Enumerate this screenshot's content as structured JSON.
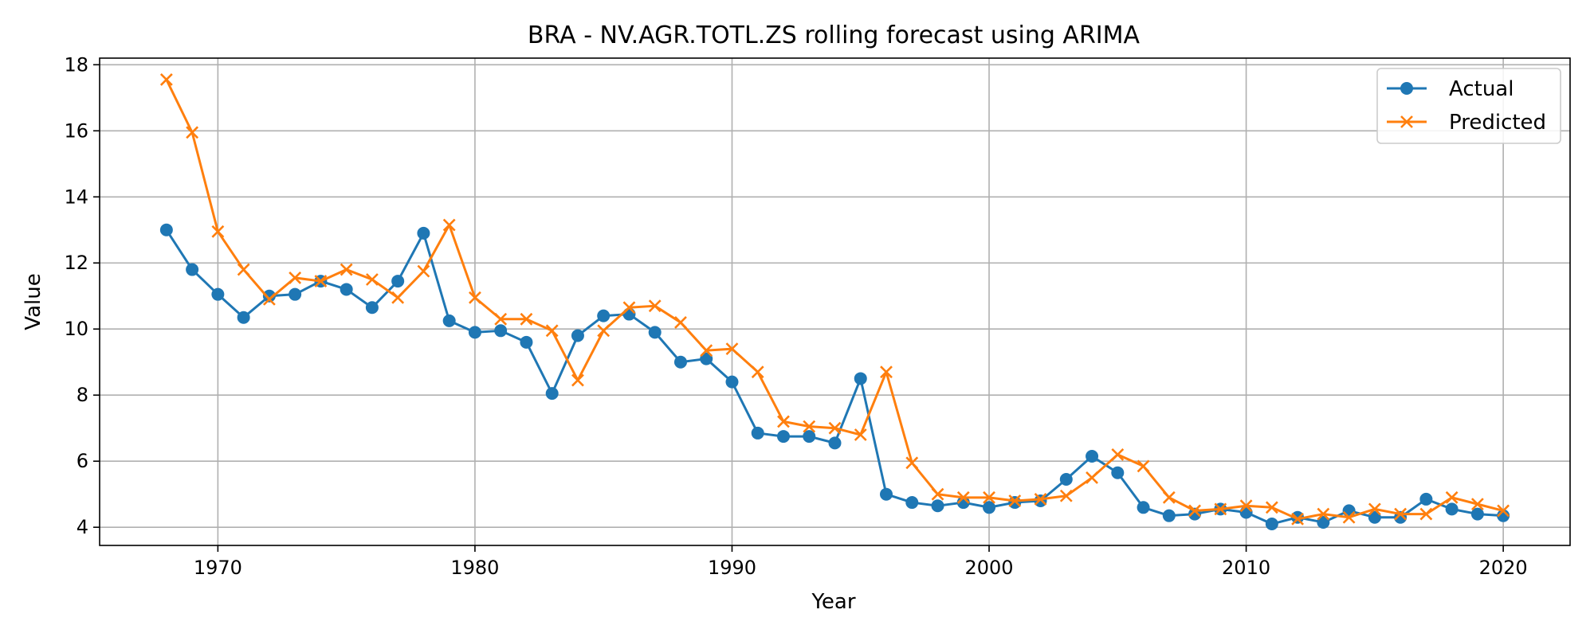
{
  "chart_data": {
    "type": "line",
    "title": "BRA - NV.AGR.TOTL.ZS rolling forecast using ARIMA",
    "xlabel": "Year",
    "ylabel": "Value",
    "xlim": [
      1965.4,
      2022.6
    ],
    "ylim": [
      3.45,
      18.2
    ],
    "xticks": [
      1970,
      1980,
      1990,
      2000,
      2010,
      2020
    ],
    "yticks": [
      4,
      6,
      8,
      10,
      12,
      14,
      16,
      18
    ],
    "grid": true,
    "legend_position": "top-right",
    "x": [
      1968,
      1969,
      1970,
      1971,
      1972,
      1973,
      1974,
      1975,
      1976,
      1977,
      1978,
      1979,
      1980,
      1981,
      1982,
      1983,
      1984,
      1985,
      1986,
      1987,
      1988,
      1989,
      1990,
      1991,
      1992,
      1993,
      1994,
      1995,
      1996,
      1997,
      1998,
      1999,
      2000,
      2001,
      2002,
      2003,
      2004,
      2005,
      2006,
      2007,
      2008,
      2009,
      2010,
      2011,
      2012,
      2013,
      2014,
      2015,
      2016,
      2017,
      2018,
      2019,
      2020
    ],
    "series": [
      {
        "name": "Actual",
        "color": "#1f77b4",
        "marker": "circle",
        "values": [
          13.0,
          11.8,
          11.05,
          10.35,
          11.0,
          11.05,
          11.45,
          11.2,
          10.65,
          11.45,
          12.9,
          10.25,
          9.9,
          9.95,
          9.6,
          8.05,
          9.8,
          10.4,
          10.45,
          9.9,
          9.0,
          9.1,
          8.4,
          6.85,
          6.75,
          6.75,
          6.55,
          8.5,
          5.0,
          4.75,
          4.65,
          4.75,
          4.6,
          4.75,
          4.8,
          5.45,
          6.15,
          5.65,
          4.6,
          4.35,
          4.4,
          4.55,
          4.45,
          4.1,
          4.3,
          4.15,
          4.5,
          4.3,
          4.3,
          4.85,
          4.55,
          4.4,
          4.35
        ]
      },
      {
        "name": "Predicted",
        "color": "#ff7f0e",
        "marker": "x",
        "values": [
          17.55,
          15.95,
          12.95,
          11.8,
          10.9,
          11.55,
          11.45,
          11.8,
          11.5,
          10.95,
          11.75,
          13.15,
          10.95,
          10.3,
          10.3,
          9.95,
          8.45,
          9.95,
          10.65,
          10.7,
          10.2,
          9.35,
          9.4,
          8.7,
          7.2,
          7.05,
          7.0,
          6.8,
          8.7,
          5.95,
          5.0,
          4.9,
          4.9,
          4.8,
          4.85,
          4.95,
          5.5,
          6.2,
          5.85,
          4.9,
          4.5,
          4.55,
          4.65,
          4.6,
          4.25,
          4.4,
          4.3,
          4.55,
          4.4,
          4.4,
          4.9,
          4.7,
          4.5
        ]
      }
    ]
  }
}
